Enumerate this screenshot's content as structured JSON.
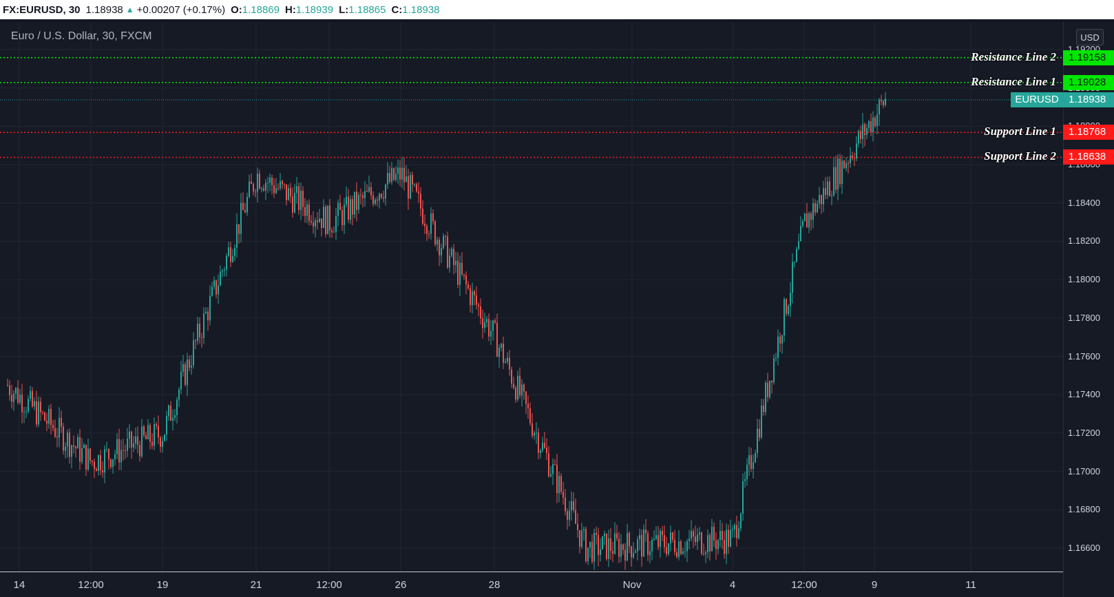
{
  "header": {
    "symbol": "FX:EURUSD, 30",
    "last": "1.18938",
    "change": "+0.00207 (+0.17%)",
    "open_label": "O:",
    "open": "1.18869",
    "high_label": "H:",
    "high": "1.18939",
    "low_label": "L:",
    "low": "1.18865",
    "close_label": "C:",
    "close": "1.18938"
  },
  "chart": {
    "title": "Euro / U.S. Dollar, 30, FXCM",
    "currency": "USD",
    "symbol_tag": "EURUSD",
    "price_tag": "1.18938"
  },
  "price_ticks": [
    "1.19200",
    "1.19000",
    "1.18800",
    "1.18600",
    "1.18400",
    "1.18200",
    "1.18000",
    "1.17800",
    "1.17600",
    "1.17400",
    "1.17200",
    "1.17000",
    "1.16800",
    "1.16600"
  ],
  "time_ticks": [
    "14",
    "12:00",
    "19",
    "21",
    "12:00",
    "26",
    "28",
    "Nov",
    "4",
    "12:00",
    "9",
    "11"
  ],
  "lines": [
    {
      "label": "Resistance Line 2",
      "value": "1.19158",
      "kind": "green"
    },
    {
      "label": "Resistance Line 1",
      "value": "1.19028",
      "kind": "green"
    },
    {
      "label": "Support Line 1",
      "value": "1.18768",
      "kind": "red"
    },
    {
      "label": "Support Line 2",
      "value": "1.18638",
      "kind": "red"
    }
  ],
  "colors": {
    "up": "#26a69a",
    "down": "#ef5350",
    "resistance": "#00e600",
    "support": "#ff1a1a"
  },
  "chart_data": {
    "type": "line",
    "title": "Euro / U.S. Dollar, 30, FXCM",
    "xlabel": "",
    "ylabel": "",
    "ylim": [
      1.1656,
      1.1931
    ],
    "x_ticks": [
      "14",
      "12:00",
      "19",
      "21",
      "12:00",
      "26",
      "28",
      "Nov",
      "4",
      "12:00",
      "9",
      "11"
    ],
    "series": [
      {
        "name": "EURUSD",
        "x": [
          "14",
          "12:00",
          "19",
          "21",
          "12:00",
          "26",
          "28",
          "Nov",
          "4",
          "12:00",
          "9"
        ],
        "values": [
          1.1745,
          1.1705,
          1.172,
          1.1855,
          1.183,
          1.1855,
          1.177,
          1.166,
          1.1665,
          1.183,
          1.1894
        ]
      }
    ],
    "horizontal_lines": [
      {
        "name": "Resistance Line 2",
        "y": 1.19158
      },
      {
        "name": "Resistance Line 1",
        "y": 1.19028
      },
      {
        "name": "EURUSD",
        "y": 1.18938
      },
      {
        "name": "Support Line 1",
        "y": 1.18768
      },
      {
        "name": "Support Line 2",
        "y": 1.18638
      }
    ]
  }
}
